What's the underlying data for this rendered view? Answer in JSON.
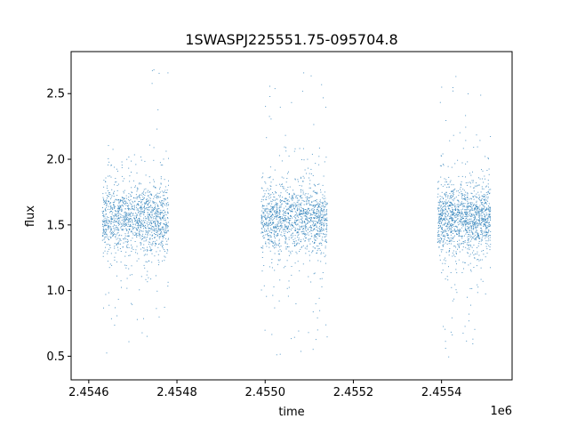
{
  "chart_data": {
    "type": "scatter",
    "title": "1SWASPJ225551.75-095704.8",
    "xlabel": "time",
    "ylabel": "flux",
    "x_offset_label": "1e6",
    "xlim": [
      2.45456,
      2.45556
    ],
    "ylim": [
      0.32,
      2.82
    ],
    "x_ticks": [
      {
        "value": 2.4546,
        "label": "2.4546"
      },
      {
        "value": 2.4548,
        "label": "2.4548"
      },
      {
        "value": 2.455,
        "label": "2.4550"
      },
      {
        "value": 2.4552,
        "label": "2.4552"
      },
      {
        "value": 2.4554,
        "label": "2.4554"
      }
    ],
    "y_ticks": [
      {
        "value": 0.5,
        "label": "0.5"
      },
      {
        "value": 1.0,
        "label": "1.0"
      },
      {
        "value": 1.5,
        "label": "1.5"
      },
      {
        "value": 2.0,
        "label": "2.0"
      },
      {
        "value": 2.5,
        "label": "2.5"
      }
    ],
    "grid": false,
    "legend": "none",
    "series_color": "#1f77b4",
    "point_clusters": [
      {
        "x_start": 2.45463,
        "x_end": 2.45478,
        "median_flux": 1.55,
        "flux_min": 0.43,
        "flux_max": 2.69
      },
      {
        "x_start": 2.45499,
        "x_end": 2.45514,
        "median_flux": 1.55,
        "flux_min": 0.42,
        "flux_max": 2.69
      },
      {
        "x_start": 2.45539,
        "x_end": 2.45551,
        "median_flux": 1.55,
        "flux_min": 0.43,
        "flux_max": 2.69
      }
    ]
  }
}
